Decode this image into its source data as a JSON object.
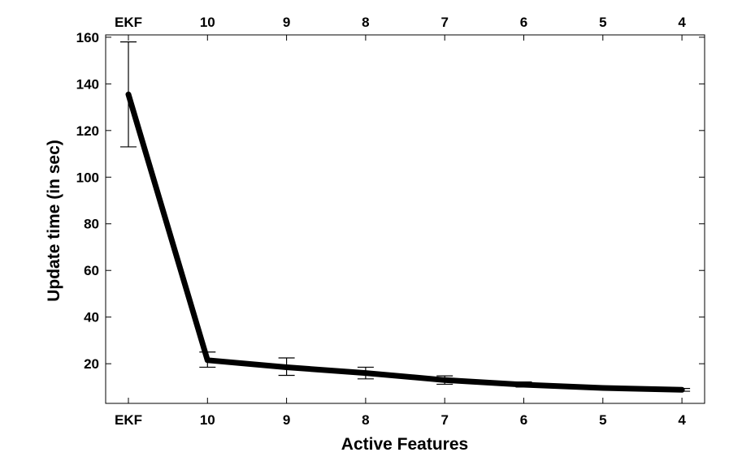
{
  "chart_data": {
    "type": "line",
    "title": "",
    "xlabel": "Active Features",
    "ylabel": "Update time (in sec)",
    "categories": [
      "EKF",
      "10",
      "9",
      "8",
      "7",
      "6",
      "5",
      "4"
    ],
    "top_axis_labels": [
      "EKF",
      "10",
      "9",
      "8",
      "7",
      "6",
      "5",
      "4"
    ],
    "yticks": [
      20,
      40,
      60,
      80,
      100,
      120,
      140,
      160
    ],
    "ylim": [
      3,
      161
    ],
    "grid": false,
    "legend": "none",
    "series": [
      {
        "values": [
          135.5,
          21.5,
          18.5,
          16.0,
          13.0,
          11.0,
          9.6,
          8.8
        ],
        "error_low": [
          113,
          18.5,
          15,
          13.5,
          11.2,
          10.0,
          9.0,
          8.2
        ],
        "error_high": [
          158,
          25,
          22.5,
          18.5,
          14.8,
          12.2,
          10.2,
          9.4
        ],
        "color": "#000000"
      }
    ]
  }
}
